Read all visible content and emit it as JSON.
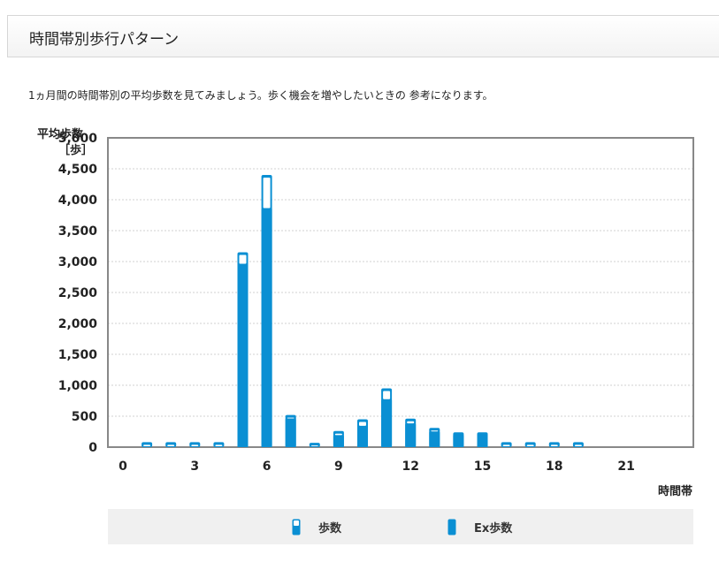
{
  "header": {
    "title": "時間帯別歩行パターン"
  },
  "description": "1ヵ月間の時間帯別の平均歩数を見てみましょう。歩く機会を増やしたいときの 参考になります。",
  "colors": {
    "bar": "#0a8fd3",
    "axis": "#888888",
    "grid": "#d0d0d0"
  },
  "chart_data": {
    "type": "bar",
    "ylabel": "平均歩数",
    "yunit": "［歩］",
    "xlabel": "時間帯",
    "ylim": [
      0,
      5000
    ],
    "y_ticks": [
      "0",
      "500",
      "1,000",
      "1,500",
      "2,000",
      "2,500",
      "3,000",
      "3,500",
      "4,000",
      "4,500",
      "5,000"
    ],
    "x_ticks": [
      "0",
      "3",
      "6",
      "9",
      "12",
      "15",
      "18",
      "21"
    ],
    "hours": [
      0,
      1,
      2,
      3,
      4,
      5,
      6,
      7,
      8,
      9,
      10,
      11,
      12,
      13,
      14,
      15,
      16,
      17,
      18,
      19,
      20,
      21,
      22,
      23
    ],
    "series": [
      {
        "name": "歩数",
        "values": [
          0,
          80,
          80,
          80,
          80,
          3150,
          4400,
          520,
          70,
          260,
          450,
          950,
          460,
          310,
          240,
          240,
          80,
          80,
          80,
          80,
          0,
          0,
          0,
          0
        ]
      },
      {
        "name": "Ex歩数",
        "values": [
          0,
          0,
          0,
          0,
          0,
          2950,
          3850,
          450,
          0,
          180,
          330,
          760,
          370,
          240,
          190,
          190,
          0,
          0,
          0,
          0,
          0,
          0,
          0,
          0
        ]
      }
    ]
  }
}
